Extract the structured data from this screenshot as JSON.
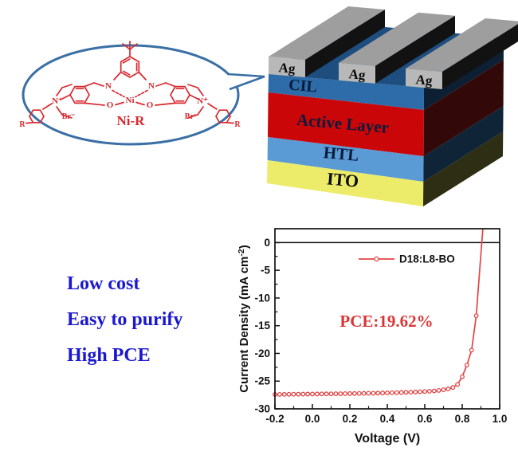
{
  "molecule": {
    "name_label": "Ni-R",
    "color": "#d8282e",
    "bubble_color": "#3a6fa5",
    "atoms": {
      "nitrogen": "N",
      "nickel": "Ni",
      "oxygen": "O",
      "ammonium": "N⁺",
      "bromide": "Br⁻",
      "substituent": "R"
    }
  },
  "device": {
    "electrode_label": "Ag",
    "label_color": "#0b1b3c",
    "ito_label_color": "#0a0a0a",
    "colors": {
      "ag_front": "#b8b8b8",
      "ag_top": "#9e9e9e",
      "ag_side": "#121212",
      "top_face": "#1d4e7f"
    },
    "layers": [
      {
        "label": "CIL",
        "front_color": "#2d6ca8",
        "side_color": "#0c1f33"
      },
      {
        "label": "Active Layer",
        "front_color": "#cb0608",
        "side_color": "#330808"
      },
      {
        "label": "HTL",
        "front_color": "#5b9bd5",
        "side_color": "#0f2437"
      },
      {
        "label": "ITO",
        "front_color": "#ecec6a",
        "side_color": "#2e2e14"
      }
    ]
  },
  "highlights": {
    "color": "#1a17cf",
    "items": [
      "Low cost",
      "Easy to purify",
      "High PCE"
    ]
  },
  "chart_data": {
    "type": "line",
    "title": "",
    "xlabel": "Voltage (V)",
    "ylabel": "Current Density (mA cm⁻²)",
    "ylabel_parts": [
      "Current Density (mA cm",
      "-2",
      ")"
    ],
    "xlim": [
      -0.2,
      1.0
    ],
    "ylim": [
      -30,
      2.5
    ],
    "xticks": [
      -0.2,
      0.0,
      0.2,
      0.4,
      0.6,
      0.8,
      1.0
    ],
    "yticks": [
      0,
      -5,
      -10,
      -15,
      -20,
      -25,
      -30
    ],
    "x_minor_step": 0.1,
    "y_minor_step": 2.5,
    "grid": false,
    "zero_line": true,
    "legend": {
      "label": "D18:L8-BO",
      "position": "upper-center"
    },
    "annotation": {
      "text": "PCE:19.62%",
      "color": "#d93636"
    },
    "axis_color": "#111111",
    "series": [
      {
        "name": "D18:L8-BO",
        "color": "#e24444",
        "x": [
          -0.2,
          -0.175,
          -0.15,
          -0.125,
          -0.1,
          -0.075,
          -0.05,
          -0.025,
          0,
          0.025,
          0.05,
          0.075,
          0.1,
          0.125,
          0.15,
          0.175,
          0.2,
          0.225,
          0.25,
          0.275,
          0.3,
          0.325,
          0.35,
          0.375,
          0.4,
          0.425,
          0.45,
          0.475,
          0.5,
          0.525,
          0.55,
          0.575,
          0.6,
          0.625,
          0.65,
          0.675,
          0.7,
          0.725,
          0.75,
          0.775,
          0.8,
          0.825,
          0.85,
          0.875,
          0.9,
          0.91
        ],
        "y": [
          -27.4,
          -27.4,
          -27.39,
          -27.38,
          -27.37,
          -27.36,
          -27.35,
          -27.34,
          -27.33,
          -27.32,
          -27.31,
          -27.3,
          -27.29,
          -27.28,
          -27.27,
          -27.26,
          -27.25,
          -27.23,
          -27.22,
          -27.21,
          -27.19,
          -27.18,
          -27.16,
          -27.14,
          -27.12,
          -27.1,
          -27.08,
          -27.05,
          -27.02,
          -26.99,
          -26.96,
          -26.92,
          -26.88,
          -26.83,
          -26.77,
          -26.68,
          -26.56,
          -26.4,
          -26.15,
          -25.6,
          -24.2,
          -22.1,
          -19.4,
          -13.2,
          -2.0,
          2.5
        ]
      }
    ]
  }
}
